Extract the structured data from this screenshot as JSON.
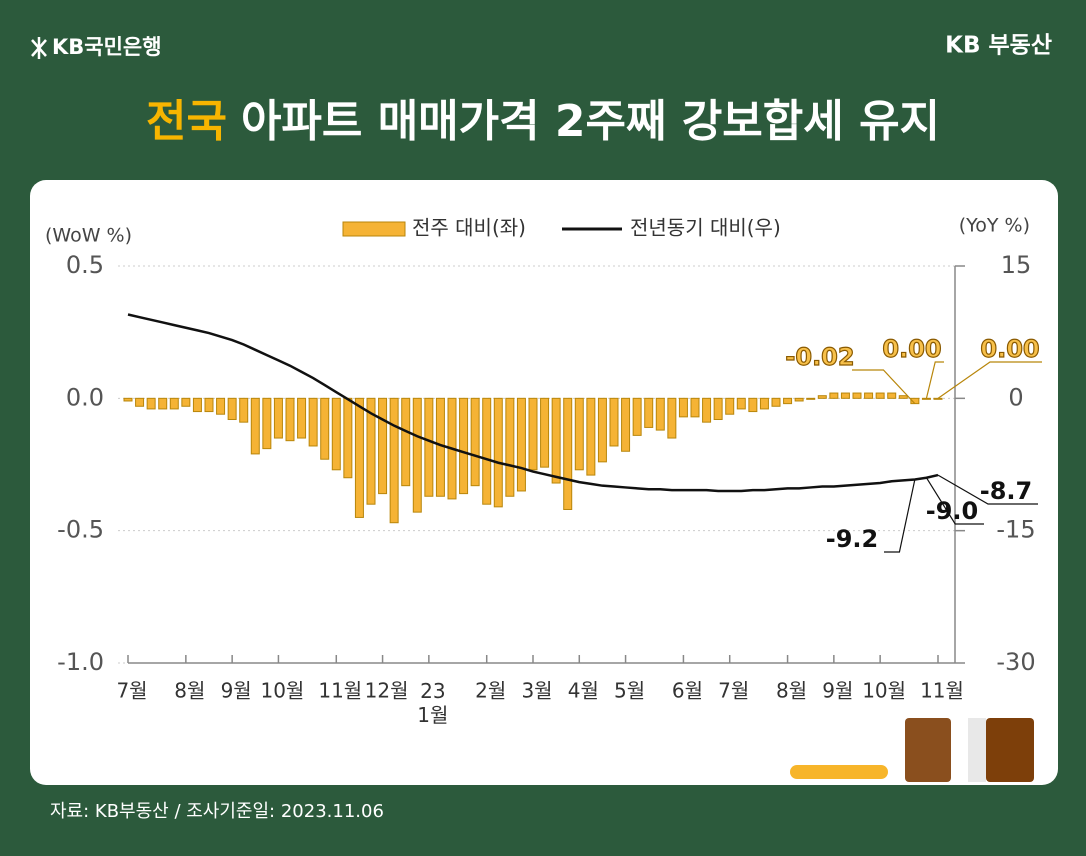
{
  "header": {
    "logo": "KB국민은행",
    "brand": "KB 부동산",
    "title_highlight": "전국",
    "title_rest": "아파트 매매가격 2주째 강보합세 유지"
  },
  "footer": {
    "source": "자료: KB부동산 / 조사기준일: 2023.11.06"
  },
  "chart_data": {
    "type": "bar-line",
    "ylabel": "(WoW %)",
    "y2label": "(YoY %)",
    "categories": [
      "7월",
      null,
      null,
      null,
      null,
      "8월",
      null,
      null,
      null,
      "9월",
      null,
      null,
      null,
      "10월",
      null,
      null,
      null,
      null,
      "11월",
      null,
      null,
      null,
      "12월",
      null,
      null,
      null,
      "23\n1월",
      null,
      null,
      null,
      null,
      "2월",
      null,
      null,
      null,
      "3월",
      null,
      null,
      null,
      "4월",
      null,
      null,
      null,
      "5월",
      null,
      null,
      null,
      null,
      "6월",
      null,
      null,
      null,
      "7월",
      null,
      null,
      null,
      null,
      "8월",
      null,
      null,
      null,
      "9월",
      null,
      null,
      null,
      "10월",
      null,
      null,
      null,
      null,
      "11월"
    ],
    "ylim": [
      -1.0,
      0.5
    ],
    "yticks": [
      {
        "value": -1.0,
        "label": "-1.0"
      },
      {
        "value": -0.5,
        "label": "-0.5"
      },
      {
        "value": 0,
        "label": "0.0"
      },
      {
        "value": 0.5,
        "label": "0.5"
      }
    ],
    "y2lim": [
      -30,
      15
    ],
    "y2ticks": [
      -30,
      -15,
      0,
      15
    ],
    "grid": true,
    "series": [
      {
        "name": "전주 대비(좌)",
        "type": "bar",
        "color": "#f5b335",
        "values": [
          -0.01,
          -0.03,
          -0.04,
          -0.04,
          -0.04,
          -0.03,
          -0.05,
          -0.05,
          -0.06,
          -0.08,
          -0.09,
          -0.21,
          -0.19,
          -0.15,
          -0.16,
          -0.15,
          -0.18,
          -0.23,
          -0.27,
          -0.3,
          -0.45,
          -0.4,
          -0.36,
          -0.47,
          -0.33,
          -0.43,
          -0.37,
          -0.37,
          -0.38,
          -0.36,
          -0.33,
          -0.4,
          -0.41,
          -0.37,
          -0.35,
          -0.27,
          -0.26,
          -0.32,
          -0.42,
          -0.27,
          -0.29,
          -0.24,
          -0.18,
          -0.2,
          -0.14,
          -0.11,
          -0.12,
          -0.15,
          -0.07,
          -0.07,
          -0.09,
          -0.08,
          -0.06,
          -0.04,
          -0.05,
          -0.04,
          -0.03,
          -0.02,
          -0.01,
          0.0,
          0.01,
          0.02,
          0.02,
          0.02,
          0.02,
          0.02,
          0.02,
          0.01,
          -0.02,
          0.0,
          0.0
        ],
        "value_labels": [
          null,
          null,
          null,
          null,
          null,
          null,
          null,
          null,
          null,
          null,
          null,
          null,
          null,
          null,
          null,
          null,
          null,
          null,
          null,
          null,
          null,
          null,
          null,
          null,
          null,
          null,
          null,
          null,
          null,
          null,
          null,
          null,
          null,
          null,
          null,
          null,
          null,
          null,
          null,
          null,
          null,
          null,
          null,
          null,
          null,
          null,
          null,
          null,
          null,
          null,
          null,
          null,
          null,
          null,
          null,
          null,
          null,
          null,
          null,
          null,
          null,
          null,
          null,
          null,
          null,
          null,
          null,
          null,
          "-0.02",
          "0.00",
          "0.00"
        ]
      },
      {
        "name": "전년동기 대비(우)",
        "type": "line",
        "axis": "y2",
        "color": "#111111",
        "values": [
          9.5,
          9.2,
          8.9,
          8.6,
          8.3,
          8.0,
          7.7,
          7.4,
          7.0,
          6.6,
          6.1,
          5.5,
          4.9,
          4.3,
          3.7,
          3.0,
          2.3,
          1.5,
          0.7,
          -0.1,
          -0.9,
          -1.7,
          -2.4,
          -3.1,
          -3.7,
          -4.3,
          -4.8,
          -5.3,
          -5.7,
          -6.1,
          -6.5,
          -6.9,
          -7.3,
          -7.6,
          -7.9,
          -8.3,
          -8.6,
          -8.9,
          -9.2,
          -9.5,
          -9.7,
          -9.9,
          -10.0,
          -10.1,
          -10.2,
          -10.3,
          -10.3,
          -10.4,
          -10.4,
          -10.4,
          -10.4,
          -10.5,
          -10.5,
          -10.5,
          -10.4,
          -10.4,
          -10.3,
          -10.2,
          -10.2,
          -10.1,
          -10.0,
          -10.0,
          -9.9,
          -9.8,
          -9.7,
          -9.6,
          -9.4,
          -9.3,
          -9.2,
          -9.0,
          -8.7
        ],
        "value_labels": [
          null,
          null,
          null,
          null,
          null,
          null,
          null,
          null,
          null,
          null,
          null,
          null,
          null,
          null,
          null,
          null,
          null,
          null,
          null,
          null,
          null,
          null,
          null,
          null,
          null,
          null,
          null,
          null,
          null,
          null,
          null,
          null,
          null,
          null,
          null,
          null,
          null,
          null,
          null,
          null,
          null,
          null,
          null,
          null,
          null,
          null,
          null,
          null,
          null,
          null,
          null,
          null,
          null,
          null,
          null,
          null,
          null,
          null,
          null,
          null,
          null,
          null,
          null,
          null,
          null,
          null,
          null,
          null,
          "-9.2",
          "-9.0",
          "-8.7"
        ]
      }
    ]
  }
}
